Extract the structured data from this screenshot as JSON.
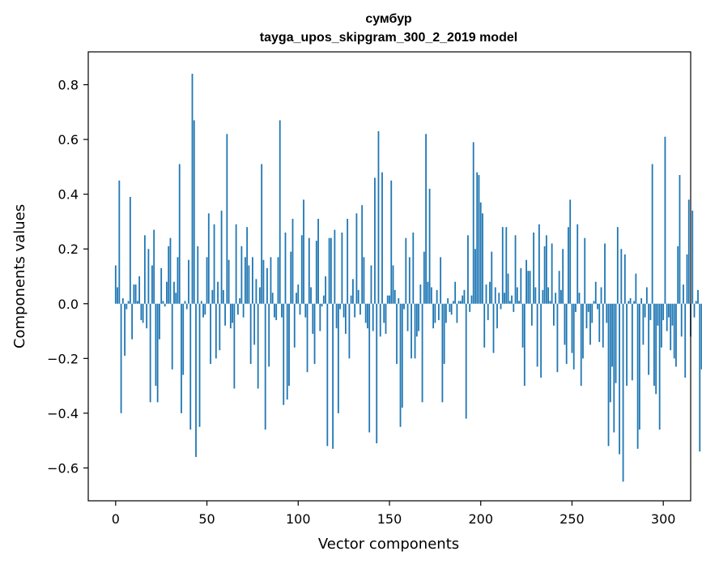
{
  "chart_data": {
    "type": "bar",
    "title": "сумбур",
    "subtitle": "tayga_upos_skipgram_300_2_2019 model",
    "xlabel": "Vector components",
    "ylabel": "Components values",
    "xlim": [
      -15,
      315
    ],
    "ylim": [
      -0.72,
      0.92
    ],
    "xticks": [
      0,
      50,
      100,
      150,
      200,
      250,
      300
    ],
    "xtick_labels": [
      "0",
      "50",
      "100",
      "150",
      "200",
      "250",
      "300"
    ],
    "yticks": [
      -0.6,
      -0.4,
      -0.2,
      0.0,
      0.2,
      0.4,
      0.6,
      0.8
    ],
    "ytick_labels": [
      "−0.6",
      "−0.4",
      "−0.2",
      "0.0",
      "0.2",
      "0.4",
      "0.6",
      "0.8"
    ],
    "grid": false,
    "bar_color": "#1f77b4",
    "values": [
      0.14,
      0.06,
      0.45,
      -0.4,
      0.02,
      -0.19,
      -0.02,
      0.01,
      0.39,
      -0.13,
      0.07,
      0.07,
      0.01,
      0.1,
      -0.06,
      -0.07,
      0.25,
      -0.09,
      0.2,
      -0.36,
      0.14,
      0.27,
      -0.3,
      -0.36,
      -0.13,
      0.13,
      0.01,
      -0.01,
      0.08,
      0.21,
      0.24,
      -0.24,
      0.08,
      0.04,
      0.17,
      0.51,
      -0.4,
      -0.26,
      0.01,
      -0.02,
      0.16,
      -0.46,
      0.84,
      0.67,
      -0.56,
      0.21,
      -0.45,
      0.01,
      -0.05,
      -0.04,
      0.17,
      0.33,
      -0.22,
      0.05,
      0.29,
      -0.2,
      0.08,
      -0.17,
      0.34,
      0.05,
      -0.08,
      0.62,
      0.16,
      -0.09,
      -0.07,
      -0.31,
      0.29,
      -0.04,
      0.02,
      0.21,
      -0.05,
      0.17,
      0.28,
      0.14,
      -0.22,
      0.17,
      -0.15,
      0.09,
      -0.31,
      0.06,
      0.51,
      0.16,
      -0.46,
      0.13,
      -0.23,
      0.17,
      0.04,
      -0.05,
      -0.06,
      0.17,
      0.67,
      -0.05,
      -0.37,
      0.26,
      -0.35,
      -0.3,
      0.19,
      0.31,
      -0.16,
      0.04,
      0.07,
      -0.04,
      0.25,
      0.38,
      -0.05,
      -0.25,
      0.24,
      0.06,
      -0.11,
      -0.22,
      0.23,
      0.31,
      -0.1,
      -0.01,
      0.03,
      0.1,
      -0.52,
      0.24,
      0.24,
      -0.53,
      0.27,
      -0.09,
      -0.4,
      -0.02,
      0.26,
      -0.05,
      -0.11,
      0.31,
      -0.2,
      0.03,
      0.09,
      -0.05,
      0.33,
      0.05,
      -0.04,
      0.36,
      0.17,
      -0.07,
      -0.09,
      -0.47,
      0.14,
      -0.1,
      0.46,
      -0.51,
      0.63,
      -0.12,
      0.48,
      -0.07,
      -0.11,
      0.03,
      0.03,
      0.45,
      0.14,
      0.05,
      -0.22,
      0.02,
      -0.45,
      -0.38,
      -0.02,
      0.24,
      -0.1,
      0.17,
      -0.2,
      0.26,
      -0.2,
      -0.12,
      -0.1,
      0.07,
      -0.36,
      0.19,
      0.62,
      0.08,
      0.42,
      0.06,
      -0.09,
      -0.07,
      0.05,
      -0.06,
      0.17,
      -0.36,
      -0.22,
      -0.07,
      0.02,
      -0.03,
      -0.04,
      0.01,
      0.08,
      -0.07,
      0.01,
      0.01,
      0.03,
      0.05,
      -0.42,
      0.25,
      -0.03,
      0.03,
      0.59,
      0.2,
      0.48,
      0.47,
      0.37,
      0.33,
      -0.16,
      0.07,
      -0.06,
      0.08,
      0.19,
      -0.18,
      0.06,
      -0.09,
      0.04,
      -0.02,
      0.28,
      0.04,
      0.28,
      0.11,
      0.01,
      0.03,
      -0.03,
      0.25,
      0.06,
      0.01,
      0.13,
      -0.16,
      -0.3,
      0.16,
      0.12,
      0.12,
      -0.08,
      0.26,
      0.06,
      -0.23,
      0.29,
      -0.27,
      0.05,
      0.21,
      0.25,
      0.06,
      0.01,
      0.22,
      -0.08,
      0.04,
      -0.25,
      0.12,
      0.05,
      0.2,
      -0.15,
      -0.22,
      0.28,
      0.38,
      -0.18,
      -0.24,
      -0.03,
      0.29,
      0.04,
      -0.3,
      -0.2,
      0.24,
      -0.09,
      -0.03,
      -0.15,
      -0.07,
      0.01,
      0.08,
      -0.02,
      -0.14,
      0.06,
      -0.16,
      0.22,
      -0.07,
      -0.52,
      -0.36,
      -0.23,
      -0.47,
      -0.29,
      0.28,
      -0.55,
      0.2,
      -0.65,
      0.18,
      -0.3,
      0.01,
      0.02,
      -0.28,
      0.01,
      0.11,
      -0.53,
      -0.46,
      0.02,
      -0.15,
      -0.05,
      0.06,
      -0.26,
      -0.06,
      0.51,
      -0.3,
      -0.33,
      -0.08,
      -0.46,
      -0.16,
      -0.06,
      0.61,
      -0.1,
      -0.05,
      -0.17,
      -0.08,
      -0.2,
      -0.23,
      0.21,
      0.47,
      -0.12,
      0.07,
      -0.27,
      0.18,
      0.38,
      -0.12,
      0.34,
      -0.05,
      0.01,
      0.05,
      -0.54,
      -0.24
    ]
  }
}
